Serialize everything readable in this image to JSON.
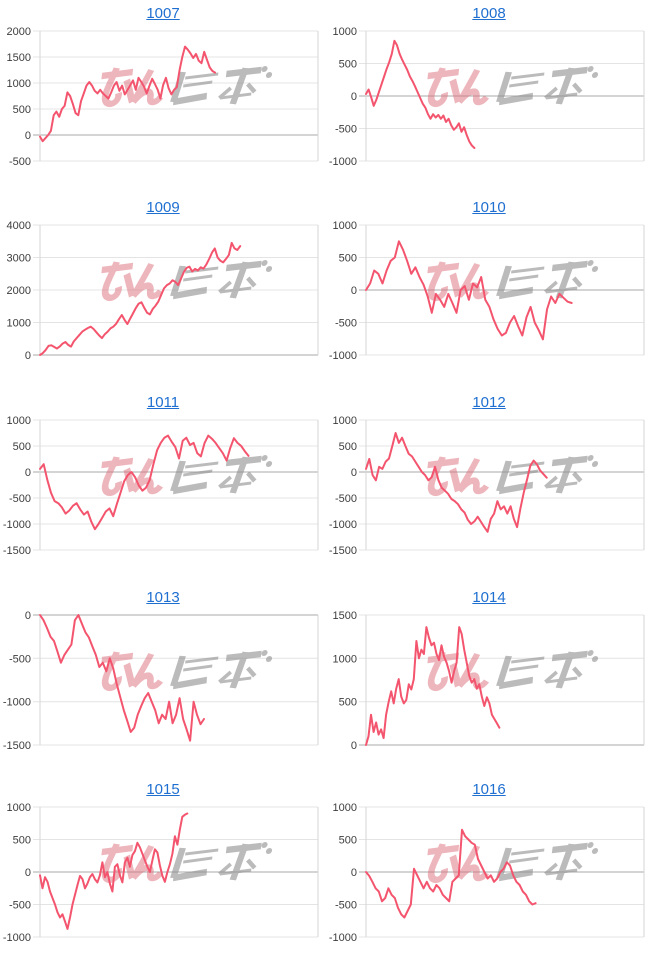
{
  "page": {
    "background": "#ffffff"
  },
  "watermark": {
    "text": "みんレポ",
    "pink_color": "#dd6f7c",
    "gray_color": "#8e8e8e"
  },
  "style": {
    "line_color": "#f4556e",
    "grid_color": "#e4e4e4",
    "zero_line_color": "#a9a9a9",
    "border_color": "#d6d6d6",
    "axis_label_color": "#3d3d3d",
    "title_link_color": "#1f6fd1"
  },
  "chart_data": [
    {
      "type": "line",
      "title": "1007",
      "yticks": [
        2000,
        1500,
        1000,
        500,
        0,
        -500
      ],
      "ylim": [
        -500,
        2000
      ],
      "x_extent": 0.63,
      "grid": true,
      "legend": false,
      "values": [
        -30,
        -120,
        -60,
        0,
        80,
        380,
        450,
        350,
        500,
        560,
        820,
        750,
        600,
        420,
        380,
        650,
        800,
        950,
        1020,
        950,
        850,
        800,
        870,
        800,
        750,
        700,
        820,
        950,
        1020,
        850,
        950,
        780,
        870,
        960,
        1050,
        870,
        1100,
        1020,
        930,
        800,
        950,
        1080,
        980,
        870,
        700,
        960,
        1100,
        900,
        780,
        870,
        920,
        1250,
        1500,
        1700,
        1640,
        1570,
        1480,
        1560,
        1430,
        1380,
        1600,
        1450,
        1300,
        1230,
        1200
      ]
    },
    {
      "type": "line",
      "title": "1008",
      "yticks": [
        1000,
        500,
        0,
        -500,
        -1000
      ],
      "ylim": [
        -1000,
        1000
      ],
      "x_extent": 0.39,
      "grid": true,
      "legend": false,
      "values": [
        30,
        100,
        -20,
        -150,
        -60,
        60,
        180,
        300,
        420,
        520,
        650,
        850,
        780,
        650,
        560,
        480,
        400,
        300,
        230,
        150,
        60,
        -30,
        -120,
        -180,
        -280,
        -350,
        -280,
        -330,
        -290,
        -350,
        -300,
        -400,
        -350,
        -450,
        -520,
        -480,
        -420,
        -550,
        -480,
        -600,
        -700,
        -760,
        -800
      ]
    },
    {
      "type": "line",
      "title": "1009",
      "yticks": [
        4000,
        3000,
        2000,
        1000,
        0
      ],
      "ylim": [
        0,
        4000
      ],
      "x_extent": 0.72,
      "grid": true,
      "legend": false,
      "values": [
        0,
        60,
        150,
        280,
        300,
        250,
        200,
        260,
        350,
        400,
        310,
        260,
        420,
        520,
        620,
        720,
        780,
        830,
        870,
        800,
        700,
        600,
        520,
        640,
        720,
        820,
        870,
        960,
        1100,
        1230,
        1080,
        950,
        1120,
        1280,
        1450,
        1580,
        1620,
        1450,
        1300,
        1250,
        1420,
        1520,
        1650,
        1850,
        2050,
        2150,
        2200,
        2300,
        2250,
        2150,
        2350,
        2550,
        2680,
        2720,
        2570,
        2650,
        2600,
        2700,
        2660,
        2780,
        2950,
        3150,
        3280,
        3000,
        2900,
        2850,
        2960,
        3080,
        3450,
        3280,
        3230,
        3350
      ]
    },
    {
      "type": "line",
      "title": "1010",
      "yticks": [
        1000,
        500,
        0,
        -500,
        -1000
      ],
      "ylim": [
        -1000,
        1000
      ],
      "x_extent": 0.74,
      "grid": true,
      "legend": false,
      "values": [
        0,
        100,
        300,
        250,
        100,
        300,
        450,
        500,
        750,
        620,
        450,
        250,
        350,
        200,
        80,
        -100,
        -350,
        -60,
        -150,
        -260,
        -60,
        -200,
        -350,
        0,
        60,
        -150,
        100,
        40,
        200,
        -150,
        -260,
        -450,
        -600,
        -700,
        -660,
        -500,
        -400,
        -560,
        -700,
        -420,
        -260,
        -500,
        -620,
        -760,
        -300,
        -100,
        -200,
        -60,
        -120,
        -180,
        -200
      ]
    },
    {
      "type": "line",
      "title": "1011",
      "yticks": [
        1000,
        500,
        0,
        -500,
        -1000,
        -1500
      ],
      "ylim": [
        -1500,
        1000
      ],
      "x_extent": 0.75,
      "grid": true,
      "legend": false,
      "values": [
        60,
        150,
        -150,
        -400,
        -560,
        -600,
        -680,
        -800,
        -740,
        -650,
        -600,
        -720,
        -820,
        -760,
        -950,
        -1100,
        -1000,
        -880,
        -760,
        -700,
        -850,
        -620,
        -400,
        -180,
        -60,
        0,
        -100,
        -260,
        -360,
        -300,
        -150,
        150,
        420,
        560,
        660,
        700,
        580,
        480,
        260,
        600,
        660,
        520,
        560,
        360,
        300,
        560,
        700,
        640,
        560,
        460,
        360,
        220,
        460,
        650,
        560,
        500,
        400,
        310
      ]
    },
    {
      "type": "line",
      "title": "1012",
      "yticks": [
        1000,
        500,
        0,
        -500,
        -1000,
        -1500
      ],
      "ylim": [
        -1500,
        1000
      ],
      "x_extent": 0.65,
      "grid": true,
      "legend": false,
      "values": [
        60,
        250,
        -60,
        -160,
        100,
        60,
        200,
        260,
        500,
        750,
        560,
        660,
        500,
        350,
        300,
        200,
        100,
        0,
        -60,
        -160,
        -100,
        100,
        -150,
        -300,
        -360,
        -420,
        -520,
        -560,
        -620,
        -720,
        -780,
        -920,
        -1000,
        -950,
        -860,
        -960,
        -1060,
        -1150,
        -900,
        -800,
        -560,
        -720,
        -660,
        -800,
        -660,
        -900,
        -1060,
        -700,
        -400,
        -150,
        120,
        220,
        150,
        30,
        -40,
        -110
      ]
    },
    {
      "type": "line",
      "title": "1013",
      "yticks": [
        0,
        -500,
        -1000,
        -1500
      ],
      "ylim": [
        -1500,
        0
      ],
      "x_extent": 0.59,
      "grid": true,
      "legend": false,
      "values": [
        0,
        -60,
        -150,
        -250,
        -300,
        -420,
        -550,
        -460,
        -400,
        -340,
        -60,
        0,
        -100,
        -200,
        -260,
        -360,
        -460,
        -600,
        -550,
        -650,
        -500,
        -620,
        -800,
        -950,
        -1100,
        -1220,
        -1350,
        -1300,
        -1150,
        -1050,
        -960,
        -900,
        -1000,
        -1100,
        -1250,
        -1150,
        -1200,
        -1000,
        -1250,
        -1150,
        -960,
        -1200,
        -1320,
        -1450,
        -1000,
        -1150,
        -1260,
        -1200
      ]
    },
    {
      "type": "line",
      "title": "1014",
      "yticks": [
        1500,
        1000,
        500,
        0
      ],
      "ylim": [
        0,
        1500
      ],
      "x_extent": 0.48,
      "grid": true,
      "legend": false,
      "values": [
        0,
        100,
        350,
        150,
        260,
        120,
        180,
        80,
        350,
        500,
        620,
        480,
        650,
        760,
        560,
        480,
        520,
        700,
        640,
        760,
        1200,
        1000,
        1100,
        1050,
        1360,
        1240,
        1150,
        1180,
        1050,
        980,
        1150,
        1020,
        950,
        850,
        720,
        850,
        950,
        1360,
        1280,
        1100,
        950,
        800,
        720,
        760,
        650,
        700,
        560,
        450,
        550,
        480,
        350,
        300,
        250,
        200
      ]
    },
    {
      "type": "line",
      "title": "1015",
      "yticks": [
        1000,
        500,
        0,
        -500,
        -1000
      ],
      "ylim": [
        -1000,
        1000
      ],
      "x_extent": 0.53,
      "grid": true,
      "legend": false,
      "values": [
        -50,
        -250,
        -80,
        -150,
        -300,
        -400,
        -500,
        -620,
        -700,
        -650,
        -760,
        -875,
        -700,
        -500,
        -350,
        -200,
        -60,
        -110,
        -250,
        -180,
        -80,
        -30,
        -110,
        -160,
        -50,
        150,
        -80,
        0,
        -180,
        -300,
        80,
        120,
        -50,
        -160,
        150,
        220,
        80,
        260,
        320,
        450,
        380,
        280,
        180,
        80,
        0,
        180,
        350,
        300,
        100,
        -60,
        -150,
        0,
        120,
        280,
        550,
        420,
        650,
        850,
        880,
        900
      ]
    },
    {
      "type": "line",
      "title": "1016",
      "yticks": [
        1000,
        500,
        0,
        -500,
        -1000
      ],
      "ylim": [
        -1000,
        1000
      ],
      "x_extent": 0.61,
      "grid": true,
      "legend": false,
      "values": [
        0,
        -60,
        -150,
        -250,
        -300,
        -450,
        -400,
        -250,
        -350,
        -400,
        -550,
        -650,
        -700,
        -600,
        -500,
        50,
        -50,
        -150,
        -250,
        -150,
        -250,
        -300,
        -200,
        -250,
        -350,
        -400,
        -450,
        -150,
        -100,
        -50,
        650,
        550,
        500,
        450,
        420,
        200,
        100,
        0,
        -100,
        -50,
        -150,
        -100,
        0,
        50,
        150,
        100,
        -50,
        -150,
        -200,
        -300,
        -350,
        -450,
        -500,
        -480
      ]
    }
  ]
}
